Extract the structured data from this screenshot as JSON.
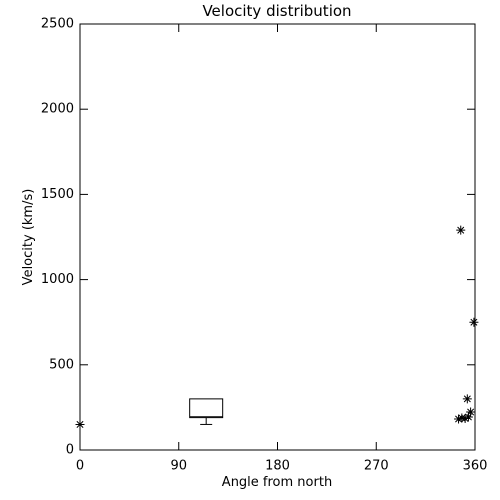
{
  "chart_data": {
    "type": "scatter",
    "title": "Velocity distribution",
    "xlabel": "Angle from north",
    "ylabel": "Velocity (km/s)",
    "xlim": [
      0,
      360
    ],
    "ylim": [
      0,
      2500
    ],
    "xticks": [
      0,
      90,
      180,
      270,
      360
    ],
    "yticks": [
      0,
      500,
      1000,
      1500,
      2000,
      2500
    ],
    "color": "#000000",
    "series": [
      {
        "x": [
          0,
          347,
          359,
          353,
          345,
          348,
          351,
          354,
          356
        ],
        "values": [
          150,
          1290,
          750,
          300,
          182,
          188,
          185,
          194,
          223
        ]
      }
    ],
    "box": {
      "x": 115,
      "min": 150,
      "q1": 190,
      "median": 195,
      "q3": 300
    }
  }
}
